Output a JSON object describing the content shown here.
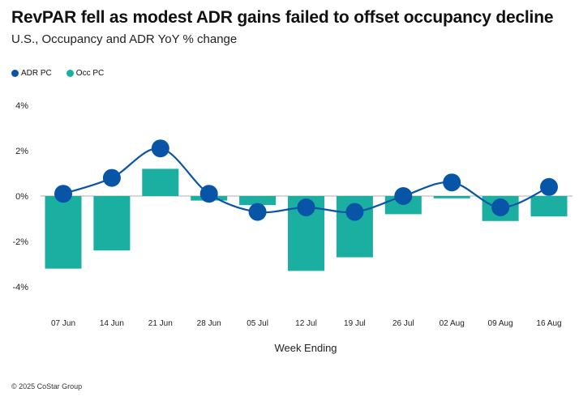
{
  "title": "RevPAR fell as modest ADR gains failed to offset occupancy decline",
  "subtitle": "U.S., Occupancy and ADR YoY % change",
  "footer": "© 2025 CoStar Group",
  "colors": {
    "adr": "#0855a8",
    "occ": "#1aafa0",
    "zero_line": "#cccccc"
  },
  "chart_data": {
    "type": "bar+line",
    "title": "RevPAR fell as modest ADR gains failed to offset occupancy decline",
    "subtitle": "U.S., Occupancy and ADR YoY % change",
    "xlabel": "Week Ending",
    "ylabel": "",
    "ylim": [
      -4,
      4
    ],
    "yticks": [
      -4,
      -2,
      0,
      2,
      4
    ],
    "ytick_labels": [
      "-4%",
      "-2%",
      "0%",
      "2%",
      "4%"
    ],
    "grid": false,
    "legend": "top-left",
    "categories": [
      "07 Jun",
      "14 Jun",
      "21 Jun",
      "28 Jun",
      "05 Jul",
      "12 Jul",
      "19 Jul",
      "26 Jul",
      "02 Aug",
      "09 Aug",
      "16 Aug"
    ],
    "series": [
      {
        "name": "ADR PC",
        "type": "line",
        "values": [
          0.1,
          0.8,
          2.1,
          0.1,
          -0.7,
          -0.5,
          -0.7,
          0.0,
          0.6,
          -0.5,
          0.4
        ]
      },
      {
        "name": "Occ PC",
        "type": "bar",
        "values": [
          -3.2,
          -2.4,
          1.2,
          -0.2,
          -0.4,
          -3.3,
          -2.7,
          -0.8,
          -0.1,
          -1.1,
          -0.9
        ]
      }
    ]
  }
}
